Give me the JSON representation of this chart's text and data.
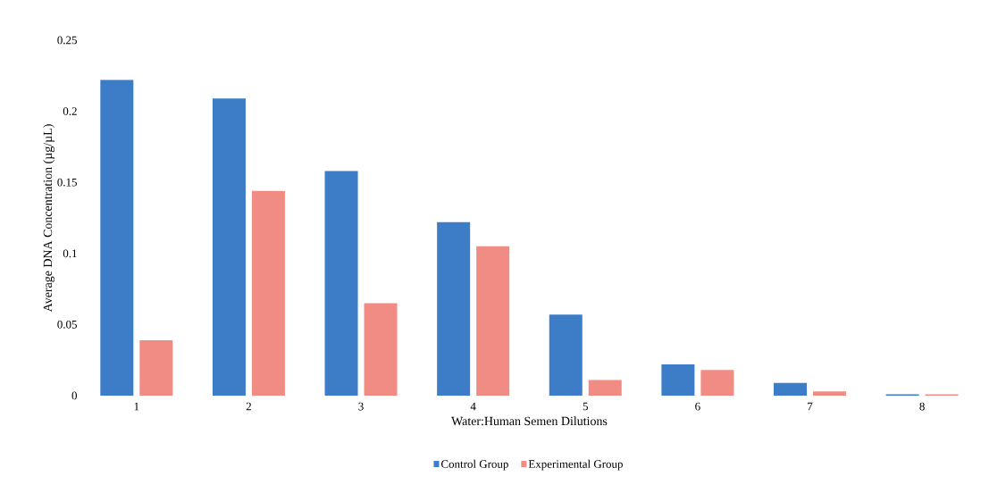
{
  "chart_data": {
    "type": "bar",
    "xlabel": "Water:Human Semen Dilutions",
    "ylabel": "Average DNA Concentration (µg/µL)",
    "categories": [
      "1",
      "2",
      "3",
      "4",
      "5",
      "6",
      "7",
      "8"
    ],
    "series": [
      {
        "name": "Control Group",
        "color": "#3d7dc8",
        "values": [
          0.222,
          0.209,
          0.158,
          0.122,
          0.057,
          0.022,
          0.009,
          0.001
        ]
      },
      {
        "name": "Experimental Group",
        "color": "#f08c84",
        "values": [
          0.039,
          0.144,
          0.065,
          0.105,
          0.011,
          0.018,
          0.003,
          0.001
        ]
      }
    ],
    "ylim": [
      0,
      0.25
    ],
    "yticks": [
      0,
      0.05,
      0.1,
      0.15,
      0.2,
      0.25
    ],
    "grid": false,
    "legend": "bottom"
  }
}
